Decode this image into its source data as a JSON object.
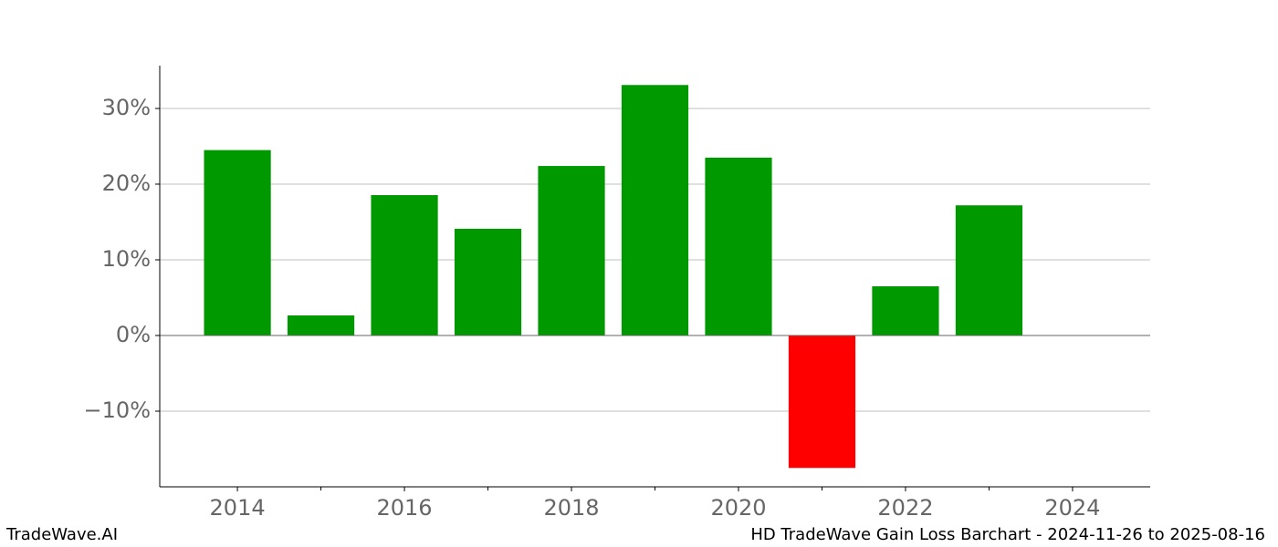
{
  "chart_data": {
    "type": "bar",
    "x": [
      2014,
      2015,
      2016,
      2017,
      2018,
      2019,
      2020,
      2021,
      2022,
      2023
    ],
    "values": [
      24.5,
      2.65,
      18.55,
      14.1,
      22.4,
      33.1,
      23.5,
      -17.5,
      6.5,
      17.2
    ],
    "colors": [
      "#009900",
      "#009900",
      "#009900",
      "#009900",
      "#009900",
      "#009900",
      "#009900",
      "#ff0000",
      "#009900",
      "#009900"
    ],
    "xlim": [
      2013.07,
      2024.93
    ],
    "ylim": [
      -20.0,
      35.66
    ],
    "xticks": [
      2014,
      2016,
      2018,
      2020,
      2022,
      2024
    ],
    "xminorticks": [
      2015,
      2017,
      2019,
      2021,
      2023
    ],
    "yticks": [
      {
        "value": -10,
        "label": "−10%"
      },
      {
        "value": 0,
        "label": "0%"
      },
      {
        "value": 10,
        "label": "10%"
      },
      {
        "value": 20,
        "label": "20%"
      },
      {
        "value": 30,
        "label": "30%"
      }
    ],
    "grid": true,
    "footer_left": "TradeWave.AI",
    "footer_right": "HD TradeWave Gain Loss Barchart - 2024-11-26 to 2025-08-16"
  }
}
